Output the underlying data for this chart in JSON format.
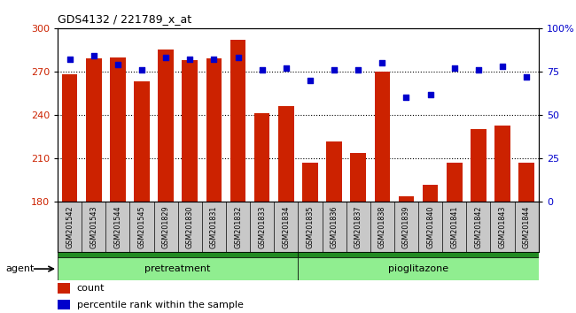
{
  "title": "GDS4132 / 221789_x_at",
  "samples": [
    "GSM201542",
    "GSM201543",
    "GSM201544",
    "GSM201545",
    "GSM201829",
    "GSM201830",
    "GSM201831",
    "GSM201832",
    "GSM201833",
    "GSM201834",
    "GSM201835",
    "GSM201836",
    "GSM201837",
    "GSM201838",
    "GSM201839",
    "GSM201840",
    "GSM201841",
    "GSM201842",
    "GSM201843",
    "GSM201844"
  ],
  "counts": [
    268,
    279,
    280,
    263,
    285,
    278,
    279,
    292,
    241,
    246,
    207,
    222,
    214,
    270,
    184,
    192,
    207,
    230,
    233,
    207
  ],
  "percentiles": [
    82,
    84,
    79,
    76,
    83,
    82,
    82,
    83,
    76,
    77,
    70,
    76,
    76,
    80,
    60,
    62,
    77,
    76,
    78,
    72
  ],
  "groups": [
    "pretreatment",
    "pretreatment",
    "pretreatment",
    "pretreatment",
    "pretreatment",
    "pretreatment",
    "pretreatment",
    "pretreatment",
    "pretreatment",
    "pretreatment",
    "pioglitazone",
    "pioglitazone",
    "pioglitazone",
    "pioglitazone",
    "pioglitazone",
    "pioglitazone",
    "pioglitazone",
    "pioglitazone",
    "pioglitazone",
    "pioglitazone"
  ],
  "bar_color": "#cc2200",
  "dot_color": "#0000cc",
  "ylim_left": [
    180,
    300
  ],
  "ylim_right": [
    0,
    100
  ],
  "yticks_left": [
    180,
    210,
    240,
    270,
    300
  ],
  "yticks_right": [
    0,
    25,
    50,
    75,
    100
  ],
  "plot_bg_color": "#ffffff",
  "xtick_bg_color": "#c8c8c8",
  "group_bar_dark": "#228B22",
  "group_bar_light": "#90EE90",
  "legend_count_label": "count",
  "legend_pct_label": "percentile rank within the sample",
  "agent_label": "agent",
  "pretreatment_label": "pretreatment",
  "pioglitazone_label": "pioglitazone",
  "n_pretreatment": 10,
  "n_pioglitazone": 10
}
